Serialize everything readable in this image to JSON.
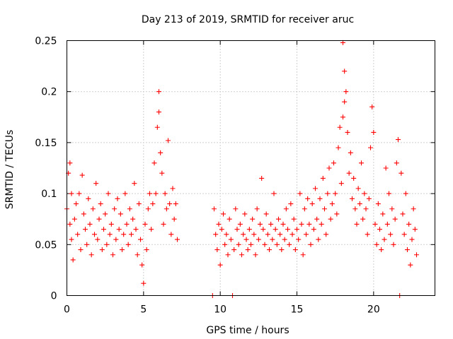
{
  "chart_data": {
    "type": "scatter",
    "title": "Day 213 of 2019, SRMTID for receiver aruc",
    "xlabel": "GPS time / hours",
    "ylabel": "SRMTID / TECUs",
    "xlim": [
      0,
      24
    ],
    "ylim": [
      0,
      0.25
    ],
    "xticks": [
      0,
      5,
      10,
      15,
      20
    ],
    "xtick_labels": [
      "0",
      "5",
      "10",
      "15",
      "20"
    ],
    "yticks": [
      0,
      0.05,
      0.1,
      0.15,
      0.2,
      0.25
    ],
    "ytick_labels": [
      "0",
      "0.05",
      "0.1",
      "0.15",
      "0.2",
      "0.25"
    ],
    "grid": true,
    "marker": "+",
    "series": [
      {
        "name": "SRMTID",
        "color": "#ff0000",
        "points": [
          [
            0.0,
            0.085
          ],
          [
            0.1,
            0.12
          ],
          [
            0.2,
            0.13
          ],
          [
            0.2,
            0.07
          ],
          [
            0.3,
            0.1
          ],
          [
            0.3,
            0.055
          ],
          [
            0.4,
            0.035
          ],
          [
            0.5,
            0.075
          ],
          [
            0.6,
            0.09
          ],
          [
            0.7,
            0.06
          ],
          [
            0.8,
            0.1
          ],
          [
            0.9,
            0.045
          ],
          [
            1.0,
            0.118
          ],
          [
            1.1,
            0.08
          ],
          [
            1.2,
            0.065
          ],
          [
            1.3,
            0.05
          ],
          [
            1.4,
            0.095
          ],
          [
            1.5,
            0.07
          ],
          [
            1.6,
            0.04
          ],
          [
            1.7,
            0.085
          ],
          [
            1.8,
            0.06
          ],
          [
            1.9,
            0.11
          ],
          [
            2.0,
            0.055
          ],
          [
            2.1,
            0.075
          ],
          [
            2.2,
            0.09
          ],
          [
            2.3,
            0.045
          ],
          [
            2.4,
            0.065
          ],
          [
            2.5,
            0.08
          ],
          [
            2.6,
            0.05
          ],
          [
            2.7,
            0.1
          ],
          [
            2.8,
            0.06
          ],
          [
            2.9,
            0.07
          ],
          [
            3.0,
            0.04
          ],
          [
            3.1,
            0.085
          ],
          [
            3.2,
            0.055
          ],
          [
            3.3,
            0.095
          ],
          [
            3.4,
            0.065
          ],
          [
            3.5,
            0.08
          ],
          [
            3.6,
            0.045
          ],
          [
            3.7,
            0.06
          ],
          [
            3.8,
            0.1
          ],
          [
            3.9,
            0.07
          ],
          [
            4.0,
            0.05
          ],
          [
            4.1,
            0.085
          ],
          [
            4.2,
            0.06
          ],
          [
            4.3,
            0.075
          ],
          [
            4.4,
            0.11
          ],
          [
            4.5,
            0.065
          ],
          [
            4.6,
            0.04
          ],
          [
            4.7,
            0.09
          ],
          [
            4.8,
            0.055
          ],
          [
            4.9,
            0.03
          ],
          [
            5.0,
            0.012
          ],
          [
            5.1,
            0.07
          ],
          [
            5.2,
            0.045
          ],
          [
            5.3,
            0.085
          ],
          [
            5.4,
            0.1
          ],
          [
            5.5,
            0.065
          ],
          [
            5.6,
            0.09
          ],
          [
            5.7,
            0.13
          ],
          [
            5.8,
            0.1
          ],
          [
            5.9,
            0.165
          ],
          [
            6.0,
            0.18
          ],
          [
            6.0,
            0.2
          ],
          [
            6.1,
            0.14
          ],
          [
            6.2,
            0.12
          ],
          [
            6.3,
            0.07
          ],
          [
            6.4,
            0.1
          ],
          [
            6.5,
            0.085
          ],
          [
            6.6,
            0.152
          ],
          [
            6.7,
            0.09
          ],
          [
            6.8,
            0.06
          ],
          [
            6.9,
            0.105
          ],
          [
            7.0,
            0.075
          ],
          [
            7.1,
            0.09
          ],
          [
            7.2,
            0.055
          ],
          [
            9.5,
            0.0
          ],
          [
            9.6,
            0.085
          ],
          [
            9.7,
            0.06
          ],
          [
            9.8,
            0.045
          ],
          [
            9.9,
            0.07
          ],
          [
            10.0,
            0.03
          ],
          [
            10.1,
            0.065
          ],
          [
            10.2,
            0.08
          ],
          [
            10.3,
            0.05
          ],
          [
            10.4,
            0.06
          ],
          [
            10.5,
            0.04
          ],
          [
            10.6,
            0.075
          ],
          [
            10.7,
            0.055
          ],
          [
            10.8,
            0.0
          ],
          [
            10.9,
            0.045
          ],
          [
            11.0,
            0.085
          ],
          [
            11.1,
            0.065
          ],
          [
            11.2,
            0.05
          ],
          [
            11.3,
            0.07
          ],
          [
            11.4,
            0.04
          ],
          [
            11.5,
            0.06
          ],
          [
            11.6,
            0.08
          ],
          [
            11.7,
            0.055
          ],
          [
            11.8,
            0.045
          ],
          [
            11.9,
            0.065
          ],
          [
            12.0,
            0.05
          ],
          [
            12.1,
            0.075
          ],
          [
            12.2,
            0.06
          ],
          [
            12.3,
            0.04
          ],
          [
            12.4,
            0.085
          ],
          [
            12.5,
            0.055
          ],
          [
            12.6,
            0.07
          ],
          [
            12.7,
            0.115
          ],
          [
            12.8,
            0.065
          ],
          [
            12.9,
            0.05
          ],
          [
            13.0,
            0.08
          ],
          [
            13.1,
            0.06
          ],
          [
            13.2,
            0.045
          ],
          [
            13.3,
            0.07
          ],
          [
            13.4,
            0.055
          ],
          [
            13.5,
            0.1
          ],
          [
            13.6,
            0.065
          ],
          [
            13.7,
            0.05
          ],
          [
            13.8,
            0.075
          ],
          [
            13.9,
            0.06
          ],
          [
            14.0,
            0.045
          ],
          [
            14.1,
            0.07
          ],
          [
            14.2,
            0.055
          ],
          [
            14.3,
            0.085
          ],
          [
            14.4,
            0.065
          ],
          [
            14.5,
            0.05
          ],
          [
            14.6,
            0.09
          ],
          [
            14.7,
            0.06
          ],
          [
            14.8,
            0.075
          ],
          [
            14.9,
            0.045
          ],
          [
            15.0,
            0.065
          ],
          [
            15.1,
            0.055
          ],
          [
            15.2,
            0.1
          ],
          [
            15.3,
            0.07
          ],
          [
            15.4,
            0.04
          ],
          [
            15.5,
            0.085
          ],
          [
            15.6,
            0.06
          ],
          [
            15.7,
            0.095
          ],
          [
            15.8,
            0.07
          ],
          [
            15.9,
            0.05
          ],
          [
            16.0,
            0.09
          ],
          [
            16.1,
            0.065
          ],
          [
            16.2,
            0.105
          ],
          [
            16.3,
            0.075
          ],
          [
            16.4,
            0.055
          ],
          [
            16.5,
            0.095
          ],
          [
            16.6,
            0.07
          ],
          [
            16.7,
            0.115
          ],
          [
            16.8,
            0.085
          ],
          [
            16.9,
            0.06
          ],
          [
            17.0,
            0.1
          ],
          [
            17.1,
            0.125
          ],
          [
            17.2,
            0.075
          ],
          [
            17.3,
            0.09
          ],
          [
            17.4,
            0.13
          ],
          [
            17.5,
            0.1
          ],
          [
            17.6,
            0.08
          ],
          [
            17.7,
            0.145
          ],
          [
            17.8,
            0.165
          ],
          [
            17.9,
            0.11
          ],
          [
            18.0,
            0.175
          ],
          [
            18.0,
            0.248
          ],
          [
            18.1,
            0.22
          ],
          [
            18.1,
            0.19
          ],
          [
            18.2,
            0.2
          ],
          [
            18.3,
            0.16
          ],
          [
            18.4,
            0.12
          ],
          [
            18.5,
            0.14
          ],
          [
            18.6,
            0.095
          ],
          [
            18.7,
            0.115
          ],
          [
            18.8,
            0.085
          ],
          [
            18.9,
            0.07
          ],
          [
            19.0,
            0.105
          ],
          [
            19.1,
            0.09
          ],
          [
            19.2,
            0.13
          ],
          [
            19.3,
            0.075
          ],
          [
            19.4,
            0.1
          ],
          [
            19.5,
            0.085
          ],
          [
            19.6,
            0.06
          ],
          [
            19.7,
            0.095
          ],
          [
            19.8,
            0.145
          ],
          [
            19.9,
            0.185
          ],
          [
            20.0,
            0.16
          ],
          [
            20.1,
            0.07
          ],
          [
            20.2,
            0.05
          ],
          [
            20.3,
            0.09
          ],
          [
            20.4,
            0.065
          ],
          [
            20.5,
            0.045
          ],
          [
            20.6,
            0.08
          ],
          [
            20.7,
            0.055
          ],
          [
            20.8,
            0.125
          ],
          [
            20.9,
            0.07
          ],
          [
            21.0,
            0.1
          ],
          [
            21.1,
            0.06
          ],
          [
            21.2,
            0.085
          ],
          [
            21.3,
            0.05
          ],
          [
            21.4,
            0.075
          ],
          [
            21.5,
            0.13
          ],
          [
            21.6,
            0.153
          ],
          [
            21.7,
            0.0
          ],
          [
            21.8,
            0.12
          ],
          [
            21.9,
            0.08
          ],
          [
            22.0,
            0.06
          ],
          [
            22.1,
            0.1
          ],
          [
            22.2,
            0.045
          ],
          [
            22.3,
            0.07
          ],
          [
            22.4,
            0.03
          ],
          [
            22.5,
            0.055
          ],
          [
            22.6,
            0.085
          ],
          [
            22.7,
            0.065
          ],
          [
            22.8,
            0.04
          ]
        ]
      }
    ]
  }
}
